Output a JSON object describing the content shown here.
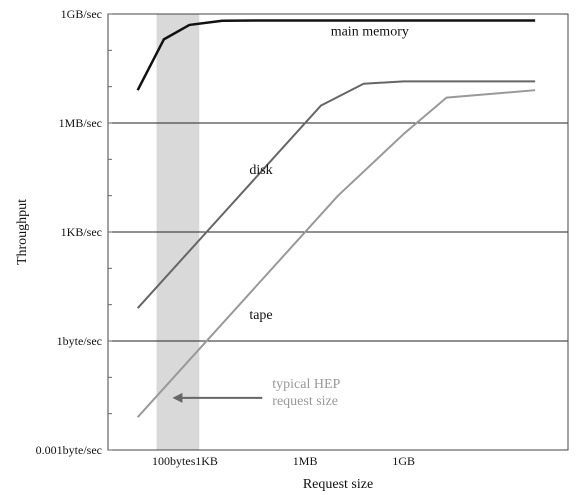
{
  "chart_data": {
    "type": "line",
    "title": "",
    "xlabel": "Request size",
    "ylabel": "Throughput",
    "x_scale": "log",
    "y_scale": "log",
    "xlim_bytes": [
      1,
      100000000000000
    ],
    "ylim_bytes_per_sec": [
      0.001,
      1000000000
    ],
    "x_ticks": [
      {
        "label": "100bytes",
        "value": 100
      },
      {
        "label": "1KB",
        "value": 1000
      },
      {
        "label": "1MB",
        "value": 1000000
      },
      {
        "label": "1GB",
        "value": 1000000000
      }
    ],
    "y_ticks": [
      {
        "label": "0.001byte/sec",
        "value": 0.001
      },
      {
        "label": "1byte/sec",
        "value": 1
      },
      {
        "label": "1KB/sec",
        "value": 1000
      },
      {
        "label": "1MB/sec",
        "value": 1000000
      },
      {
        "label": "1GB/sec",
        "value": 1000000000
      }
    ],
    "grid": "horizontal lines at labeled y ticks",
    "shaded_band": {
      "label": "typical HEP request size",
      "x_from": 30,
      "x_to": 600
    },
    "series": [
      {
        "name": "main memory",
        "color": "#111111",
        "x": [
          8,
          50,
          300,
          3000,
          30000,
          1000000,
          100000000,
          10000000000,
          10000000000000
        ],
        "y": [
          8000000,
          200000000,
          500000000,
          650000000,
          660000000,
          660000000,
          660000000,
          660000000,
          660000000
        ]
      },
      {
        "name": "disk",
        "color": "#666666",
        "x": [
          8,
          100,
          1000,
          10000,
          100000,
          3000000,
          60000000,
          1000000000,
          10000000000000
        ],
        "y": [
          8,
          100,
          1000,
          10000,
          100000,
          3000000,
          12000000,
          14000000,
          14000000
        ]
      },
      {
        "name": "tape",
        "color": "#999999",
        "x": [
          8,
          10000000,
          1000000000,
          20000000000,
          10000000000000
        ],
        "y": [
          0.008,
          10000,
          500000,
          5000000,
          8000000
        ]
      }
    ],
    "annotation": {
      "text_lines": [
        "typical HEP",
        "request size"
      ],
      "color": "#999999"
    }
  },
  "colors": {
    "band": "#d9d9d9",
    "grid": "#222222",
    "axis": "#444444"
  }
}
